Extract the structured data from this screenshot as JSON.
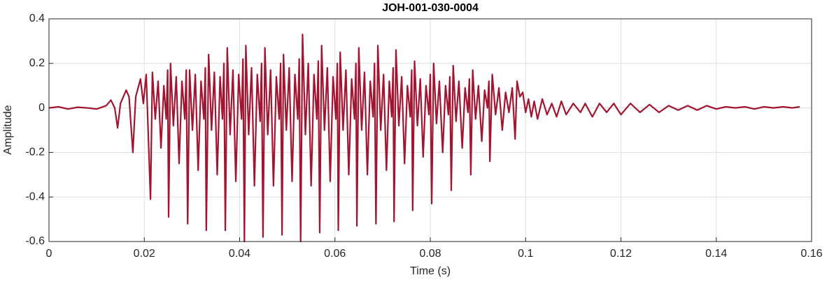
{
  "chart_data": {
    "type": "line",
    "title": "JOH-001-030-0004",
    "xlabel": "Time (s)",
    "ylabel": "Amplitude",
    "color": "#a2142f",
    "grid": true,
    "xlim": [
      0,
      0.16
    ],
    "xticks": [
      0,
      0.02,
      0.04,
      0.06,
      0.08,
      0.1,
      0.12,
      0.14,
      0.16
    ],
    "ylim": [
      -0.6,
      0.4
    ],
    "yticks": [
      -0.6,
      -0.4,
      -0.2,
      0,
      0.2,
      0.4
    ],
    "x": [
      0,
      0.002,
      0.004,
      0.006,
      0.008,
      0.01,
      0.012,
      0.013,
      0.0138,
      0.0144,
      0.015,
      0.0162,
      0.0168,
      0.0176,
      0.0182,
      0.0192,
      0.0198,
      0.0204,
      0.0213,
      0.0217,
      0.0223,
      0.0229,
      0.0235,
      0.0241,
      0.0246,
      0.0249,
      0.0251,
      0.0255,
      0.0261,
      0.0267,
      0.0273,
      0.0279,
      0.0285,
      0.0288,
      0.0291,
      0.0295,
      0.0301,
      0.0307,
      0.0313,
      0.0319,
      0.0325,
      0.0328,
      0.033,
      0.0335,
      0.0341,
      0.0347,
      0.0353,
      0.0359,
      0.0364,
      0.0367,
      0.037,
      0.0374,
      0.038,
      0.0386,
      0.0392,
      0.0398,
      0.0404,
      0.0407,
      0.041,
      0.0413,
      0.0419,
      0.0425,
      0.0431,
      0.0437,
      0.0443,
      0.0446,
      0.0449,
      0.0453,
      0.0459,
      0.0465,
      0.0471,
      0.0477,
      0.0483,
      0.0486,
      0.0489,
      0.0492,
      0.0498,
      0.0504,
      0.051,
      0.0516,
      0.0522,
      0.0525,
      0.0528,
      0.0532,
      0.0538,
      0.0544,
      0.055,
      0.0556,
      0.0562,
      0.0565,
      0.0568,
      0.0572,
      0.0578,
      0.0584,
      0.059,
      0.0596,
      0.0602,
      0.0605,
      0.0607,
      0.0611,
      0.0617,
      0.0623,
      0.0629,
      0.0635,
      0.0641,
      0.0644,
      0.0646,
      0.065,
      0.0656,
      0.0662,
      0.0668,
      0.0674,
      0.068,
      0.0683,
      0.0686,
      0.069,
      0.0696,
      0.0702,
      0.0708,
      0.0714,
      0.0719,
      0.0722,
      0.0724,
      0.0728,
      0.0734,
      0.074,
      0.0746,
      0.0752,
      0.0758,
      0.0761,
      0.0763,
      0.0767,
      0.0773,
      0.0779,
      0.0785,
      0.0791,
      0.0797,
      0.08,
      0.0803,
      0.0807,
      0.0813,
      0.0819,
      0.0826,
      0.0832,
      0.0838,
      0.0841,
      0.0844,
      0.0848,
      0.0854,
      0.086,
      0.0867,
      0.0873,
      0.0879,
      0.0882,
      0.0885,
      0.0889,
      0.0895,
      0.0901,
      0.0908,
      0.0914,
      0.092,
      0.0923,
      0.0925,
      0.093,
      0.0937,
      0.0944,
      0.0951,
      0.0958,
      0.0965,
      0.0972,
      0.0978,
      0.0982,
      0.0988,
      0.0994,
      0.1,
      0.1006,
      0.1012,
      0.1018,
      0.1025,
      0.1035,
      0.1045,
      0.1055,
      0.1065,
      0.1075,
      0.1085,
      0.11,
      0.1115,
      0.1125,
      0.114,
      0.1155,
      0.117,
      0.1185,
      0.12,
      0.122,
      0.124,
      0.126,
      0.128,
      0.13,
      0.132,
      0.134,
      0.136,
      0.138,
      0.14,
      0.142,
      0.144,
      0.146,
      0.148,
      0.15,
      0.152,
      0.154,
      0.156,
      0.1575
    ],
    "values": [
      0,
      0.005,
      -0.005,
      0.003,
      0,
      -0.005,
      0.01,
      0.035,
      0,
      -0.09,
      0.02,
      0.08,
      0.05,
      -0.2,
      0.05,
      0.13,
      0.02,
      0.15,
      -0.41,
      0.16,
      -0.05,
      0.12,
      -0.18,
      0.1,
      -0.05,
      0.17,
      -0.49,
      0.2,
      -0.08,
      0.14,
      -0.25,
      0.12,
      -0.05,
      0.17,
      -0.52,
      0.17,
      -0.1,
      0.15,
      -0.28,
      0.12,
      -0.05,
      0.18,
      -0.55,
      0.24,
      -0.1,
      0.16,
      -0.3,
      0.14,
      -0.05,
      0.2,
      -0.55,
      0.27,
      -0.12,
      0.17,
      -0.33,
      0.15,
      -0.05,
      0.22,
      -0.6,
      0.28,
      -0.12,
      0.18,
      -0.35,
      0.15,
      -0.06,
      0.2,
      -0.58,
      0.27,
      -0.12,
      0.17,
      -0.35,
      0.14,
      -0.05,
      0.2,
      -0.57,
      0.24,
      -0.1,
      0.18,
      -0.33,
      0.15,
      -0.05,
      0.22,
      -0.6,
      0.33,
      -0.12,
      0.2,
      -0.35,
      0.15,
      -0.05,
      0.21,
      -0.56,
      0.28,
      -0.1,
      0.18,
      -0.33,
      0.14,
      -0.05,
      0.2,
      -0.55,
      0.25,
      -0.1,
      0.17,
      -0.3,
      0.13,
      -0.05,
      0.2,
      -0.53,
      0.27,
      -0.1,
      0.16,
      -0.3,
      0.12,
      -0.04,
      0.2,
      -0.52,
      0.28,
      -0.1,
      0.15,
      -0.28,
      0.12,
      -0.04,
      0.18,
      -0.51,
      0.26,
      -0.08,
      0.14,
      -0.25,
      0.1,
      -0.04,
      0.17,
      -0.46,
      0.21,
      -0.08,
      0.13,
      -0.22,
      0.1,
      -0.03,
      0.15,
      -0.43,
      0.2,
      -0.07,
      0.12,
      -0.2,
      0.1,
      -0.03,
      0.14,
      -0.37,
      0.19,
      -0.06,
      0.12,
      -0.18,
      0.09,
      -0.02,
      0.13,
      -0.3,
      0.17,
      -0.05,
      0.1,
      -0.15,
      0.08,
      0,
      0.12,
      -0.24,
      0.15,
      -0.03,
      0.09,
      -0.1,
      0.07,
      -0.02,
      0.09,
      -0.14,
      0.12,
      0.05,
      0.07,
      -0.02,
      0.04,
      -0.04,
      0.03,
      -0.05,
      0.04,
      -0.03,
      0.02,
      -0.04,
      0.03,
      -0.03,
      0.02,
      -0.02,
      0.02,
      -0.04,
      0.02,
      -0.02,
      0.02,
      -0.03,
      0.02,
      -0.02,
      0.015,
      -0.02,
      0.01,
      -0.01,
      0.01,
      -0.01,
      0.01,
      -0.005,
      0.005,
      0,
      0.005,
      -0.005,
      0.005,
      0,
      0.005,
      0,
      0.005
    ]
  }
}
